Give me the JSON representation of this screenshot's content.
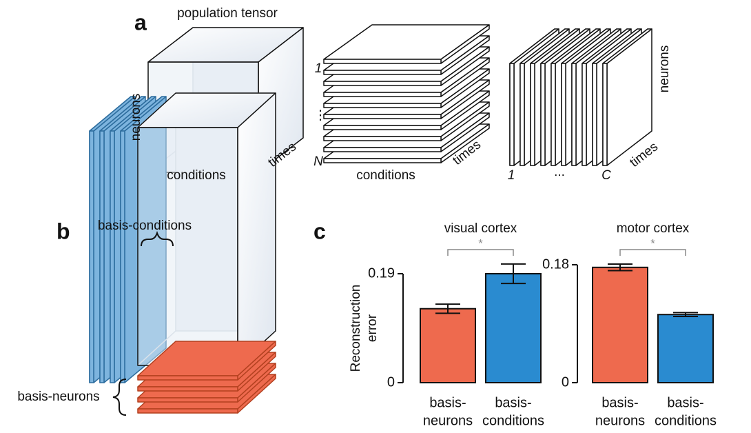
{
  "panel_a": {
    "label": "a",
    "title": "population tensor",
    "cube": {
      "y_label": "neurons",
      "x_label": "conditions",
      "z_label": "times"
    },
    "neuron_slices": {
      "first": "1",
      "dots": "⋮",
      "last": "N",
      "x_label": "conditions",
      "z_label": "times"
    },
    "condition_slices": {
      "first": "1",
      "dots": "...",
      "last": "C",
      "y_label": "neurons",
      "z_label": "times"
    }
  },
  "panel_b": {
    "label": "b",
    "top_label": "basis-conditions",
    "left_label": "basis-neurons"
  },
  "panel_c": {
    "label": "c"
  },
  "chart_data": [
    {
      "type": "bar",
      "title": "visual cortex",
      "ylabel": [
        "Reconstruction",
        "error"
      ],
      "categories": [
        [
          "basis-",
          "neurons"
        ],
        [
          "basis-",
          "conditions"
        ]
      ],
      "values": [
        0.129,
        0.19
      ],
      "errors": [
        0.008,
        0.017
      ],
      "colors": [
        "#ee6a4e",
        "#2a8bd0"
      ],
      "ylim": [
        0,
        0.19
      ],
      "yticks": [
        0,
        0.19
      ],
      "annotation": "*"
    },
    {
      "type": "bar",
      "title": "motor cortex",
      "categories": [
        [
          "basis-",
          "neurons"
        ],
        [
          "basis-",
          "conditions"
        ]
      ],
      "values": [
        0.176,
        0.104
      ],
      "errors": [
        0.005,
        0.003
      ],
      "colors": [
        "#ee6a4e",
        "#2a8bd0"
      ],
      "ylim": [
        0,
        0.18
      ],
      "yticks": [
        0,
        0.18
      ],
      "annotation": "*"
    }
  ]
}
